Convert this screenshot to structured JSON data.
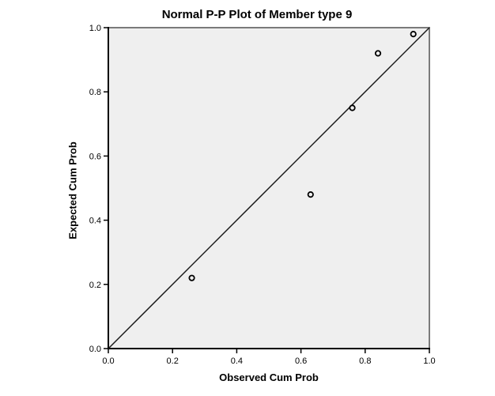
{
  "chart": {
    "title": "Normal P-P Plot of Member type 9",
    "xlabel": "Observed Cum Prob",
    "ylabel": "Expected Cum Prob"
  },
  "chart_data": {
    "type": "scatter",
    "title": "Normal P-P Plot of Member type 9",
    "xlabel": "Observed Cum Prob",
    "ylabel": "Expected Cum Prob",
    "xlim": [
      0.0,
      1.0
    ],
    "ylim": [
      0.0,
      1.0
    ],
    "x_ticks": [
      0.0,
      0.2,
      0.4,
      0.6,
      0.8,
      1.0
    ],
    "y_ticks": [
      0.0,
      0.2,
      0.4,
      0.6,
      0.8,
      1.0
    ],
    "tick_label_format": "one_decimal",
    "grid": false,
    "legend": null,
    "points": [
      {
        "x": 0.26,
        "y": 0.22
      },
      {
        "x": 0.63,
        "y": 0.48
      },
      {
        "x": 0.76,
        "y": 0.75
      },
      {
        "x": 0.84,
        "y": 0.92
      },
      {
        "x": 0.95,
        "y": 0.98
      }
    ],
    "reference_line": {
      "x1": 0.0,
      "y1": 0.0,
      "x2": 1.0,
      "y2": 1.0
    },
    "colors": {
      "plot_background": "#EFEFEF",
      "frame": "#7a7a7a",
      "axis": "#000000",
      "reference_line": "#1a1a1a",
      "marker_stroke": "#000000",
      "marker_fill": "#EFEFEF"
    }
  }
}
